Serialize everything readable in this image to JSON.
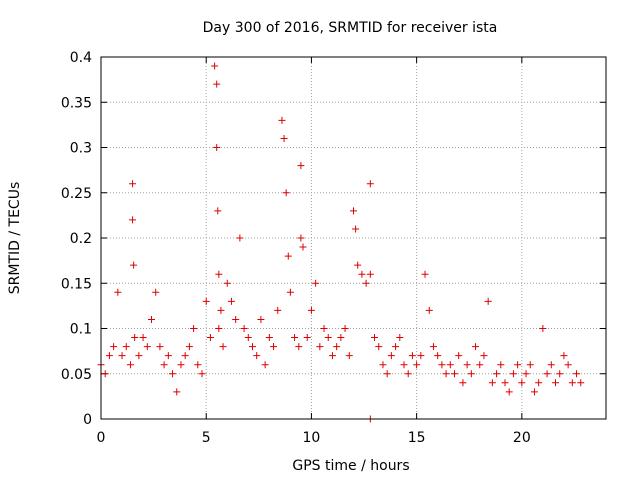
{
  "chart_data": {
    "type": "scatter",
    "title": "Day 300 of 2016, SRMTID for receiver ista",
    "xlabel": "GPS time / hours",
    "ylabel": "SRMTID / TECUs",
    "xlim": [
      0,
      24
    ],
    "ylim": [
      0,
      0.4
    ],
    "xticks": [
      0,
      5,
      10,
      15,
      20
    ],
    "xtick_labels": [
      "0",
      "5",
      "10",
      "15",
      "20"
    ],
    "yticks": [
      0,
      0.05,
      0.1,
      0.15,
      0.2,
      0.25,
      0.3,
      0.35,
      0.4
    ],
    "ytick_labels": [
      "0",
      "0.05",
      "0.1",
      "0.15",
      "0.2",
      "0.25",
      "0.3",
      "0.35",
      "0.4"
    ],
    "grid": true,
    "marker": "plus",
    "color": "#e00000",
    "series": [
      {
        "name": "SRMTID",
        "x": [
          0.0,
          0.2,
          0.4,
          0.6,
          0.8,
          1.0,
          1.2,
          1.4,
          1.5,
          1.5,
          1.55,
          1.6,
          1.8,
          2.0,
          2.2,
          2.4,
          2.6,
          2.8,
          3.0,
          3.2,
          3.4,
          3.6,
          3.8,
          4.0,
          4.2,
          4.4,
          4.6,
          4.8,
          5.0,
          5.2,
          5.4,
          5.5,
          5.5,
          5.55,
          5.6,
          5.6,
          5.7,
          5.8,
          6.0,
          6.2,
          6.4,
          6.6,
          6.8,
          7.0,
          7.2,
          7.4,
          7.6,
          7.8,
          8.0,
          8.2,
          8.4,
          8.6,
          8.7,
          8.8,
          8.9,
          9.0,
          9.2,
          9.4,
          9.5,
          9.5,
          9.6,
          9.8,
          10.0,
          10.2,
          10.4,
          10.6,
          10.8,
          11.0,
          11.2,
          11.4,
          11.6,
          11.8,
          12.0,
          12.1,
          12.2,
          12.4,
          12.6,
          12.8,
          12.8,
          12.8,
          13.0,
          13.2,
          13.4,
          13.6,
          13.8,
          14.0,
          14.2,
          14.4,
          14.6,
          14.8,
          15.0,
          15.2,
          15.4,
          15.6,
          15.8,
          16.0,
          16.2,
          16.4,
          16.6,
          16.8,
          17.0,
          17.2,
          17.4,
          17.6,
          17.8,
          18.0,
          18.2,
          18.4,
          18.6,
          18.8,
          19.0,
          19.2,
          19.4,
          19.6,
          19.8,
          20.0,
          20.2,
          20.4,
          20.6,
          20.8,
          21.0,
          21.2,
          21.4,
          21.6,
          21.8,
          22.0,
          22.2,
          22.4,
          22.6,
          22.8
        ],
        "y": [
          0.06,
          0.05,
          0.07,
          0.08,
          0.14,
          0.07,
          0.08,
          0.06,
          0.26,
          0.22,
          0.17,
          0.09,
          0.07,
          0.09,
          0.08,
          0.11,
          0.14,
          0.08,
          0.06,
          0.07,
          0.05,
          0.03,
          0.06,
          0.07,
          0.08,
          0.1,
          0.06,
          0.05,
          0.13,
          0.09,
          0.39,
          0.37,
          0.3,
          0.23,
          0.16,
          0.1,
          0.12,
          0.08,
          0.15,
          0.13,
          0.11,
          0.2,
          0.1,
          0.09,
          0.08,
          0.07,
          0.11,
          0.06,
          0.09,
          0.08,
          0.12,
          0.33,
          0.31,
          0.25,
          0.18,
          0.14,
          0.09,
          0.08,
          0.28,
          0.2,
          0.19,
          0.09,
          0.12,
          0.15,
          0.08,
          0.1,
          0.09,
          0.07,
          0.08,
          0.09,
          0.1,
          0.07,
          0.23,
          0.21,
          0.17,
          0.16,
          0.15,
          0.26,
          0.16,
          0.0,
          0.09,
          0.08,
          0.06,
          0.05,
          0.07,
          0.08,
          0.09,
          0.06,
          0.05,
          0.07,
          0.06,
          0.07,
          0.16,
          0.12,
          0.08,
          0.07,
          0.06,
          0.05,
          0.06,
          0.05,
          0.07,
          0.04,
          0.06,
          0.05,
          0.08,
          0.06,
          0.07,
          0.13,
          0.04,
          0.05,
          0.06,
          0.04,
          0.03,
          0.05,
          0.06,
          0.04,
          0.05,
          0.06,
          0.03,
          0.04,
          0.1,
          0.05,
          0.06,
          0.04,
          0.05,
          0.07,
          0.06,
          0.04,
          0.05,
          0.04
        ]
      }
    ]
  }
}
